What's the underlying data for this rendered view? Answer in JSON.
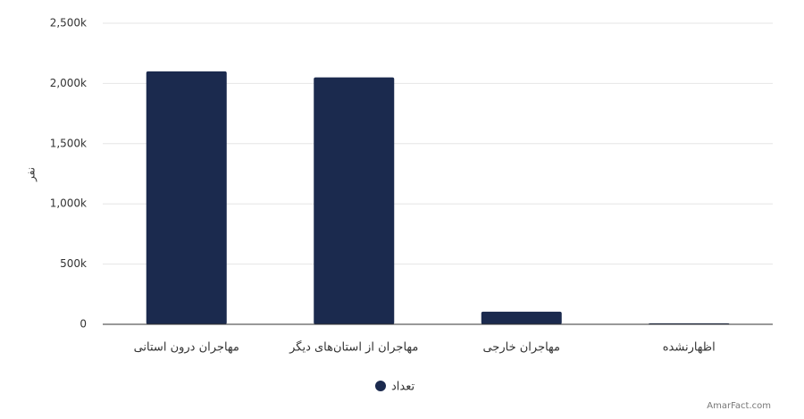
{
  "chart_data": {
    "type": "bar",
    "y_label": "نفر",
    "categories": [
      "مهاجران درون استانی",
      "مهاجران از استان‌های دیگر",
      "مهاجران خارجی",
      "اظهارنشده"
    ],
    "series": [
      {
        "name": "تعداد",
        "color": "#1b2a4e",
        "values": [
          2100000,
          2050000,
          105000,
          8000
        ]
      }
    ],
    "ylim": [
      0,
      2500000
    ],
    "yticks": [
      0,
      {
        "value": 500000,
        "label": "500k"
      },
      {
        "value": 1000000,
        "label": "1,000k"
      },
      {
        "value": 1500000,
        "label": "1,500k"
      },
      {
        "value": 2000000,
        "label": "2,000k"
      },
      {
        "value": 2500000,
        "label": "2,500k"
      }
    ],
    "grid": true,
    "legend": "bottom",
    "credit": "AmarFact.com"
  }
}
